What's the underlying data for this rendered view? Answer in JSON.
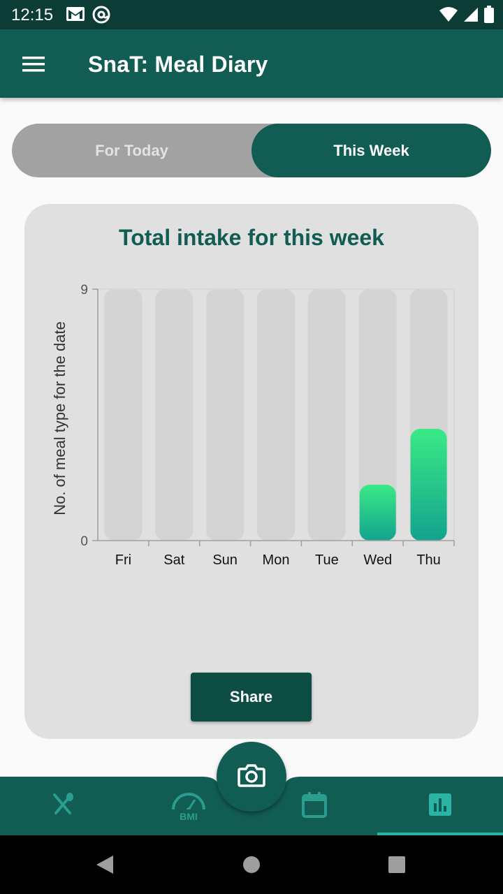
{
  "status_bar": {
    "time": "12:15",
    "left_icons": [
      "gmail-icon",
      "at-sign-icon"
    ],
    "right_icons": [
      "wifi-icon",
      "signal-icon",
      "battery-icon"
    ]
  },
  "app_bar": {
    "title": "SnaT: Meal Diary",
    "menu_icon": "hamburger-menu-icon"
  },
  "toggle": {
    "today_label": "For Today",
    "week_label": "This Week",
    "selected": "This Week"
  },
  "card": {
    "title": "Total intake for this week",
    "share_label": "Share"
  },
  "chart_data": {
    "type": "bar",
    "title": "Total intake for this week",
    "xlabel": "",
    "ylabel": "No. of meal type for the date",
    "categories": [
      "Fri",
      "Sat",
      "Sun",
      "Mon",
      "Tue",
      "Wed",
      "Thu"
    ],
    "values": [
      0,
      0,
      0,
      0,
      0,
      2,
      4
    ],
    "ylim": [
      0,
      9
    ],
    "yticks": [
      "0",
      "9"
    ],
    "bar_background_color": "#d4d4d4",
    "bar_gradient": [
      "#3aea85",
      "#13a28f"
    ],
    "grid": false
  },
  "bottom_nav": {
    "items": [
      {
        "icon": "fork-knife-icon",
        "active": false
      },
      {
        "icon": "bmi-gauge-icon",
        "label": "BMI",
        "active": false
      },
      {
        "icon": "calendar-icon",
        "active": false
      },
      {
        "icon": "bar-chart-icon",
        "active": true
      }
    ],
    "fab_icon": "camera-icon"
  },
  "system_nav": {
    "icons": [
      "back-icon",
      "home-icon",
      "recents-icon"
    ]
  },
  "colors": {
    "primary": "#115c53",
    "status_bar": "#0b3d36",
    "accent": "#2bb3a6"
  }
}
